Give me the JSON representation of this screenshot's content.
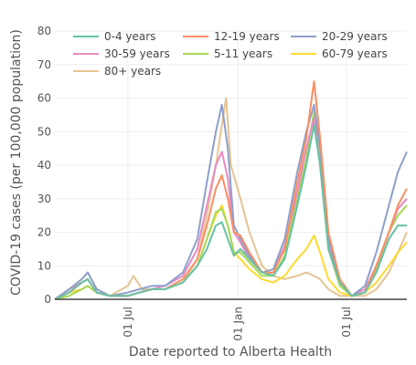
{
  "chart_data": {
    "type": "line",
    "title": "",
    "xlabel": "Date reported to Alberta Health",
    "ylabel": "COVID-19 cases (per 100,000 population)",
    "ylim": [
      0,
      80
    ],
    "yticks": [
      0,
      10,
      20,
      30,
      40,
      50,
      60,
      70,
      80
    ],
    "xlim": [
      "2020-03-01",
      "2021-10-10"
    ],
    "xticks": [
      {
        "date": "2020-07-01",
        "label": "01 Jul"
      },
      {
        "date": "2021-01-01",
        "label": "01 Jan"
      },
      {
        "date": "2021-07-01",
        "label": "01 Jul"
      }
    ],
    "grid": true,
    "legend_position": "top-left",
    "series": [
      {
        "name": "0-4 years",
        "color": "#66c2a5",
        "points": [
          [
            "2020-03-01",
            0
          ],
          [
            "2020-03-25",
            2
          ],
          [
            "2020-04-15",
            5
          ],
          [
            "2020-04-25",
            6
          ],
          [
            "2020-05-10",
            2
          ],
          [
            "2020-06-01",
            1
          ],
          [
            "2020-07-01",
            1
          ],
          [
            "2020-07-20",
            2
          ],
          [
            "2020-08-10",
            3
          ],
          [
            "2020-09-01",
            3
          ],
          [
            "2020-10-01",
            5
          ],
          [
            "2020-10-25",
            10
          ],
          [
            "2020-11-10",
            15
          ],
          [
            "2020-11-25",
            22
          ],
          [
            "2020-12-05",
            23
          ],
          [
            "2020-12-15",
            18
          ],
          [
            "2020-12-25",
            13
          ],
          [
            "2021-01-05",
            15
          ],
          [
            "2021-01-20",
            12
          ],
          [
            "2021-02-10",
            8
          ],
          [
            "2021-03-01",
            7
          ],
          [
            "2021-03-20",
            12
          ],
          [
            "2021-04-10",
            28
          ],
          [
            "2021-04-25",
            40
          ],
          [
            "2021-05-08",
            52
          ],
          [
            "2021-05-18",
            40
          ],
          [
            "2021-06-01",
            15
          ],
          [
            "2021-06-20",
            5
          ],
          [
            "2021-07-10",
            1
          ],
          [
            "2021-08-01",
            2
          ],
          [
            "2021-08-20",
            8
          ],
          [
            "2021-09-10",
            18
          ],
          [
            "2021-09-25",
            22
          ],
          [
            "2021-10-10",
            22
          ]
        ]
      },
      {
        "name": "12-19 years",
        "color": "#fc8d62",
        "points": [
          [
            "2020-03-01",
            0
          ],
          [
            "2020-03-25",
            2
          ],
          [
            "2020-04-15",
            5
          ],
          [
            "2020-04-25",
            6
          ],
          [
            "2020-05-10",
            2
          ],
          [
            "2020-06-01",
            1
          ],
          [
            "2020-07-01",
            1
          ],
          [
            "2020-07-20",
            2
          ],
          [
            "2020-08-10",
            3
          ],
          [
            "2020-09-01",
            3
          ],
          [
            "2020-10-01",
            6
          ],
          [
            "2020-10-25",
            12
          ],
          [
            "2020-11-10",
            22
          ],
          [
            "2020-11-25",
            33
          ],
          [
            "2020-12-05",
            37
          ],
          [
            "2020-12-15",
            30
          ],
          [
            "2020-12-25",
            20
          ],
          [
            "2021-01-05",
            19
          ],
          [
            "2021-01-20",
            14
          ],
          [
            "2021-02-10",
            8
          ],
          [
            "2021-03-01",
            8
          ],
          [
            "2021-03-20",
            15
          ],
          [
            "2021-04-10",
            35
          ],
          [
            "2021-04-25",
            48
          ],
          [
            "2021-05-08",
            65
          ],
          [
            "2021-05-18",
            48
          ],
          [
            "2021-06-01",
            20
          ],
          [
            "2021-06-20",
            6
          ],
          [
            "2021-07-10",
            1
          ],
          [
            "2021-08-01",
            2
          ],
          [
            "2021-08-20",
            10
          ],
          [
            "2021-09-10",
            20
          ],
          [
            "2021-09-25",
            28
          ],
          [
            "2021-10-10",
            33
          ]
        ]
      },
      {
        "name": "20-29 years",
        "color": "#8da0cb",
        "points": [
          [
            "2020-03-01",
            0
          ],
          [
            "2020-03-25",
            3
          ],
          [
            "2020-04-15",
            6
          ],
          [
            "2020-04-25",
            8
          ],
          [
            "2020-05-10",
            3
          ],
          [
            "2020-06-01",
            1
          ],
          [
            "2020-07-01",
            2
          ],
          [
            "2020-07-20",
            3
          ],
          [
            "2020-08-10",
            4
          ],
          [
            "2020-09-01",
            4
          ],
          [
            "2020-10-01",
            8
          ],
          [
            "2020-10-25",
            18
          ],
          [
            "2020-11-10",
            35
          ],
          [
            "2020-11-25",
            50
          ],
          [
            "2020-12-05",
            58
          ],
          [
            "2020-12-15",
            45
          ],
          [
            "2020-12-25",
            22
          ],
          [
            "2021-01-05",
            18
          ],
          [
            "2021-01-20",
            13
          ],
          [
            "2021-02-10",
            8
          ],
          [
            "2021-03-01",
            9
          ],
          [
            "2021-03-20",
            18
          ],
          [
            "2021-04-10",
            38
          ],
          [
            "2021-04-25",
            50
          ],
          [
            "2021-05-08",
            58
          ],
          [
            "2021-05-18",
            45
          ],
          [
            "2021-06-01",
            18
          ],
          [
            "2021-06-20",
            5
          ],
          [
            "2021-07-10",
            1
          ],
          [
            "2021-08-01",
            4
          ],
          [
            "2021-08-20",
            14
          ],
          [
            "2021-09-10",
            28
          ],
          [
            "2021-09-25",
            38
          ],
          [
            "2021-10-10",
            44
          ]
        ]
      },
      {
        "name": "30-59 years",
        "color": "#e78ac3",
        "points": [
          [
            "2020-03-01",
            0
          ],
          [
            "2020-03-25",
            3
          ],
          [
            "2020-04-15",
            5
          ],
          [
            "2020-04-25",
            6
          ],
          [
            "2020-05-10",
            2
          ],
          [
            "2020-06-01",
            1
          ],
          [
            "2020-07-01",
            1
          ],
          [
            "2020-07-20",
            2
          ],
          [
            "2020-08-10",
            3
          ],
          [
            "2020-09-01",
            4
          ],
          [
            "2020-10-01",
            7
          ],
          [
            "2020-10-25",
            15
          ],
          [
            "2020-11-10",
            28
          ],
          [
            "2020-11-25",
            40
          ],
          [
            "2020-12-05",
            44
          ],
          [
            "2020-12-15",
            36
          ],
          [
            "2020-12-25",
            20
          ],
          [
            "2021-01-05",
            17
          ],
          [
            "2021-01-20",
            12
          ],
          [
            "2021-02-10",
            8
          ],
          [
            "2021-03-01",
            8
          ],
          [
            "2021-03-20",
            16
          ],
          [
            "2021-04-10",
            32
          ],
          [
            "2021-04-25",
            45
          ],
          [
            "2021-05-08",
            54
          ],
          [
            "2021-05-18",
            40
          ],
          [
            "2021-06-01",
            16
          ],
          [
            "2021-06-20",
            5
          ],
          [
            "2021-07-10",
            1
          ],
          [
            "2021-08-01",
            3
          ],
          [
            "2021-08-20",
            10
          ],
          [
            "2021-09-10",
            20
          ],
          [
            "2021-09-25",
            27
          ],
          [
            "2021-10-10",
            30
          ]
        ]
      },
      {
        "name": "5-11 years",
        "color": "#a6d854",
        "points": [
          [
            "2020-03-01",
            0
          ],
          [
            "2020-03-25",
            1
          ],
          [
            "2020-04-15",
            3
          ],
          [
            "2020-04-25",
            4
          ],
          [
            "2020-05-10",
            2
          ],
          [
            "2020-06-01",
            1
          ],
          [
            "2020-07-01",
            1
          ],
          [
            "2020-07-20",
            2
          ],
          [
            "2020-08-10",
            3
          ],
          [
            "2020-09-01",
            3
          ],
          [
            "2020-10-01",
            5
          ],
          [
            "2020-10-25",
            10
          ],
          [
            "2020-11-10",
            18
          ],
          [
            "2020-11-25",
            26
          ],
          [
            "2020-12-05",
            27
          ],
          [
            "2020-12-15",
            22
          ],
          [
            "2020-12-25",
            14
          ],
          [
            "2021-01-05",
            14
          ],
          [
            "2021-01-20",
            11
          ],
          [
            "2021-02-10",
            7
          ],
          [
            "2021-03-01",
            7
          ],
          [
            "2021-03-20",
            13
          ],
          [
            "2021-04-10",
            30
          ],
          [
            "2021-04-25",
            42
          ],
          [
            "2021-05-08",
            56
          ],
          [
            "2021-05-18",
            40
          ],
          [
            "2021-06-01",
            15
          ],
          [
            "2021-06-20",
            4
          ],
          [
            "2021-07-10",
            1
          ],
          [
            "2021-08-01",
            2
          ],
          [
            "2021-08-20",
            9
          ],
          [
            "2021-09-10",
            20
          ],
          [
            "2021-09-25",
            25
          ],
          [
            "2021-10-10",
            28
          ]
        ]
      },
      {
        "name": "60-79 years",
        "color": "#ffd92f",
        "points": [
          [
            "2020-03-01",
            0
          ],
          [
            "2020-03-25",
            2
          ],
          [
            "2020-04-15",
            3
          ],
          [
            "2020-04-25",
            4
          ],
          [
            "2020-05-10",
            2
          ],
          [
            "2020-06-01",
            1
          ],
          [
            "2020-07-01",
            1
          ],
          [
            "2020-07-20",
            2
          ],
          [
            "2020-08-10",
            3
          ],
          [
            "2020-09-01",
            3
          ],
          [
            "2020-10-01",
            5
          ],
          [
            "2020-10-25",
            10
          ],
          [
            "2020-11-10",
            18
          ],
          [
            "2020-11-25",
            25
          ],
          [
            "2020-12-05",
            28
          ],
          [
            "2020-12-15",
            22
          ],
          [
            "2020-12-25",
            14
          ],
          [
            "2021-01-05",
            12
          ],
          [
            "2021-01-20",
            9
          ],
          [
            "2021-02-10",
            6
          ],
          [
            "2021-03-01",
            5
          ],
          [
            "2021-03-20",
            7
          ],
          [
            "2021-04-10",
            12
          ],
          [
            "2021-04-25",
            15
          ],
          [
            "2021-05-08",
            19
          ],
          [
            "2021-05-18",
            14
          ],
          [
            "2021-06-01",
            6
          ],
          [
            "2021-06-20",
            2
          ],
          [
            "2021-07-10",
            1
          ],
          [
            "2021-08-01",
            2
          ],
          [
            "2021-08-20",
            5
          ],
          [
            "2021-09-10",
            10
          ],
          [
            "2021-09-25",
            14
          ],
          [
            "2021-10-10",
            17
          ]
        ]
      },
      {
        "name": "80+ years",
        "color": "#e5c494",
        "points": [
          [
            "2020-03-01",
            0
          ],
          [
            "2020-03-25",
            3
          ],
          [
            "2020-04-15",
            6
          ],
          [
            "2020-04-25",
            8
          ],
          [
            "2020-05-10",
            3
          ],
          [
            "2020-06-01",
            1
          ],
          [
            "2020-07-01",
            4
          ],
          [
            "2020-07-10",
            7
          ],
          [
            "2020-07-25",
            3
          ],
          [
            "2020-08-10",
            3
          ],
          [
            "2020-09-01",
            3
          ],
          [
            "2020-10-01",
            5
          ],
          [
            "2020-10-25",
            12
          ],
          [
            "2020-11-10",
            25
          ],
          [
            "2020-11-25",
            40
          ],
          [
            "2020-12-05",
            52
          ],
          [
            "2020-12-12",
            60
          ],
          [
            "2020-12-20",
            40
          ],
          [
            "2021-01-05",
            30
          ],
          [
            "2021-01-20",
            20
          ],
          [
            "2021-02-10",
            10
          ],
          [
            "2021-03-01",
            7
          ],
          [
            "2021-03-20",
            6
          ],
          [
            "2021-04-10",
            7
          ],
          [
            "2021-04-25",
            8
          ],
          [
            "2021-05-08",
            7
          ],
          [
            "2021-05-18",
            6
          ],
          [
            "2021-06-01",
            3
          ],
          [
            "2021-06-20",
            1
          ],
          [
            "2021-07-10",
            1
          ],
          [
            "2021-08-01",
            1
          ],
          [
            "2021-08-20",
            3
          ],
          [
            "2021-09-10",
            8
          ],
          [
            "2021-09-25",
            14
          ],
          [
            "2021-10-10",
            20
          ]
        ]
      }
    ]
  }
}
